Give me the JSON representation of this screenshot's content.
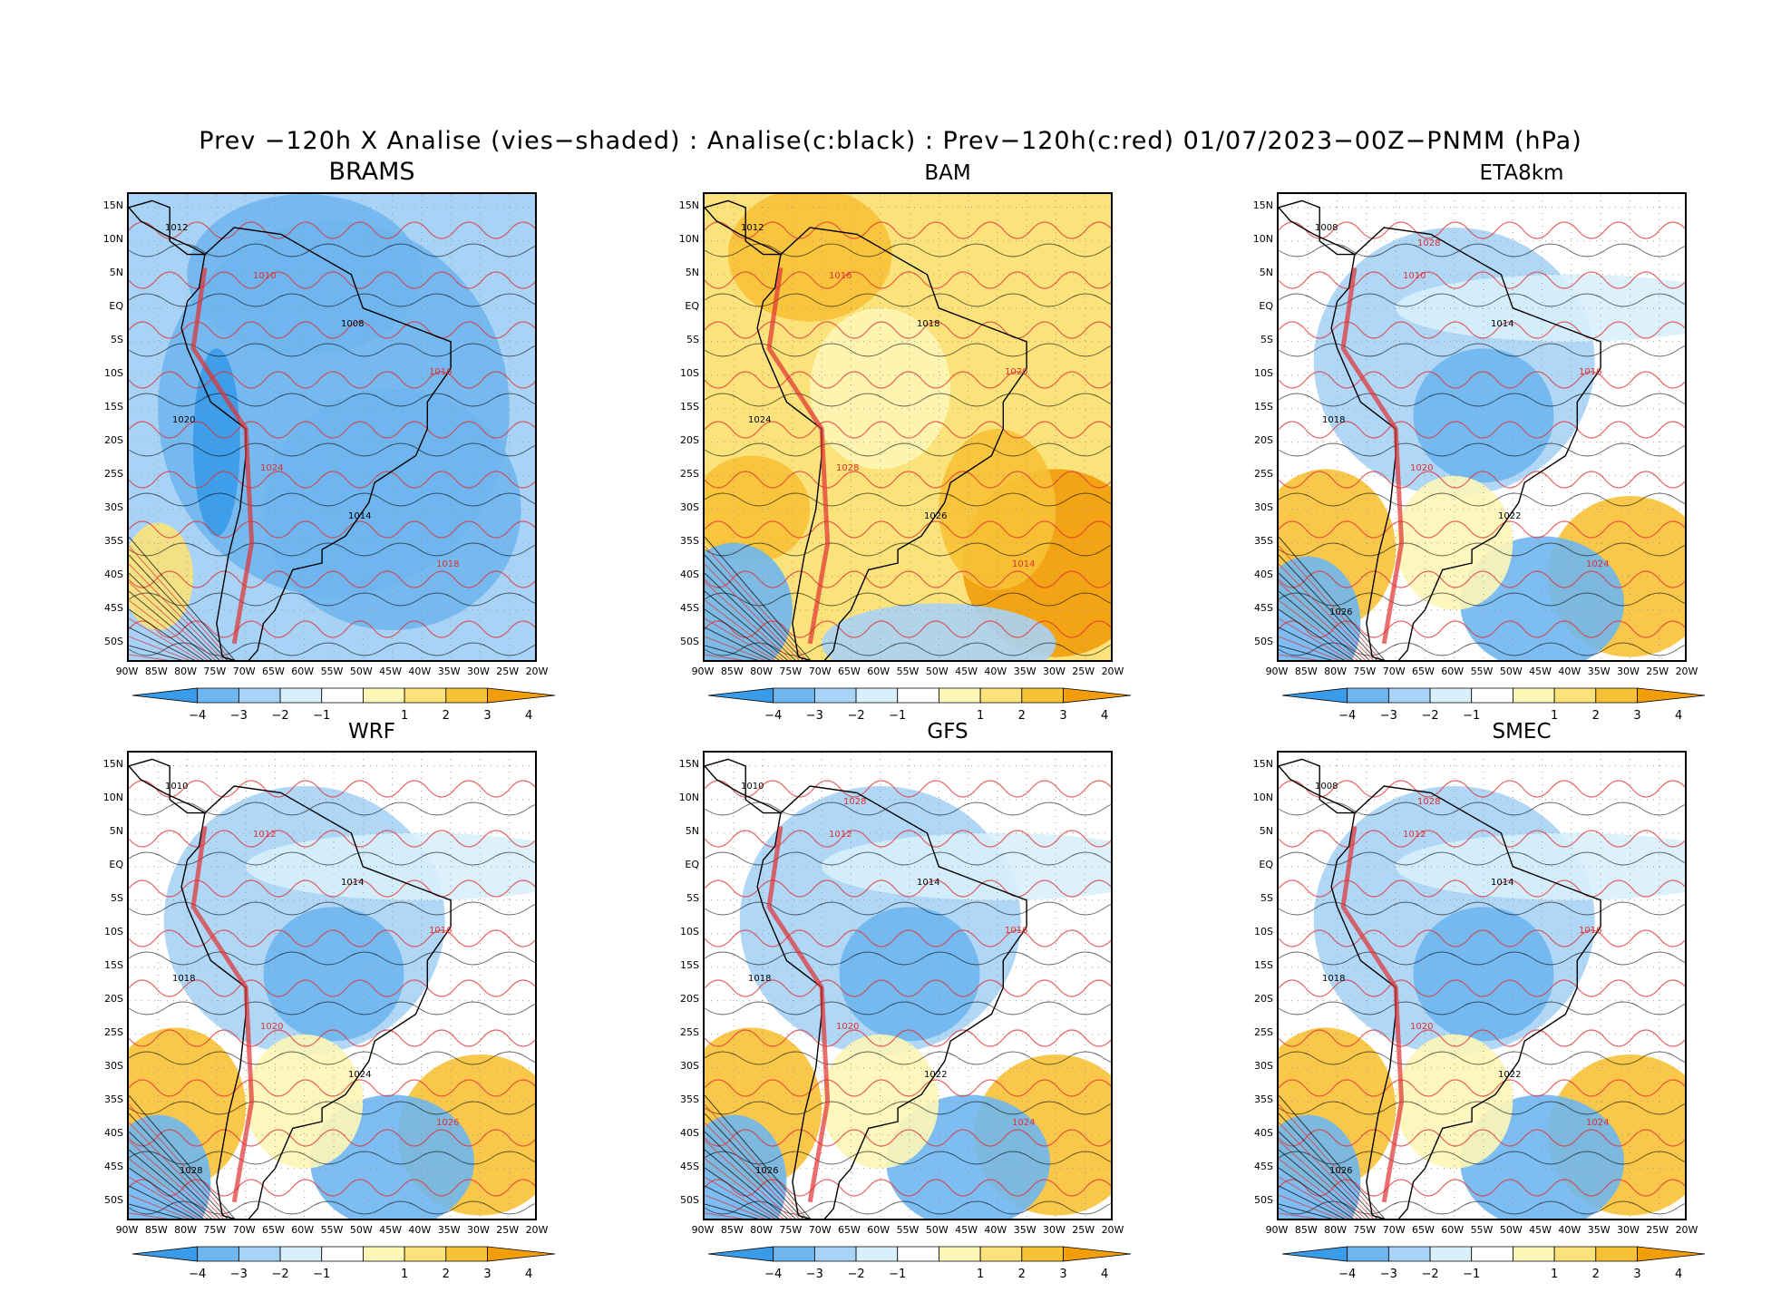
{
  "title": "Prev −120h X Analise (vies−shaded) : Analise(c:black) : Prev−120h(c:red) 01/07/2023−00Z−PNMM (hPa)",
  "colors": {
    "neg4": "#3a9be8",
    "neg3": "#6fb6ef",
    "neg2": "#a8d3f6",
    "neg1": "#d8f0fb",
    "zero": "#ffffff",
    "pos1": "#fdf6b6",
    "pos2": "#fbe27a",
    "pos3": "#f8c236",
    "pos4": "#f29d0a",
    "analysis_contour": "#000000",
    "forecast_contour": "#e03030"
  },
  "colorbar_labels": [
    "−4",
    "−3",
    "−2",
    "−1",
    "1",
    "2",
    "3",
    "4"
  ],
  "lat_labels": [
    "15N",
    "10N",
    "5N",
    "EQ",
    "5S",
    "10S",
    "15S",
    "20S",
    "25S",
    "30S",
    "35S",
    "40S",
    "45S",
    "50S"
  ],
  "lon_labels": [
    "90W",
    "85W",
    "80W",
    "75W",
    "70W",
    "65W",
    "60W",
    "55W",
    "50W",
    "45W",
    "40W",
    "35W",
    "30W",
    "25W",
    "20W"
  ],
  "panels": [
    {
      "name": "BRAMS",
      "bias": "negative",
      "contours": [
        "1012",
        "1010",
        "1008",
        "1016",
        "1020",
        "1024",
        "1014",
        "1018"
      ]
    },
    {
      "name": "BAM",
      "bias": "positive",
      "contours": [
        "1012",
        "1016",
        "1018",
        "1020",
        "1024",
        "1028",
        "1026",
        "1014"
      ]
    },
    {
      "name": "ETA8km",
      "bias": "mixed",
      "contours": [
        "1008",
        "1010",
        "1014",
        "1016",
        "1018",
        "1020",
        "1022",
        "1024",
        "1026",
        "1028"
      ]
    },
    {
      "name": "WRF",
      "bias": "mixed",
      "contours": [
        "1010",
        "1012",
        "1014",
        "1016",
        "1018",
        "1020",
        "1024",
        "1026",
        "1028"
      ]
    },
    {
      "name": "GFS",
      "bias": "mixed",
      "contours": [
        "1010",
        "1012",
        "1014",
        "1016",
        "1018",
        "1020",
        "1022",
        "1024",
        "1026",
        "1028"
      ]
    },
    {
      "name": "SMEC",
      "bias": "mixed",
      "contours": [
        "1008",
        "1012",
        "1014",
        "1016",
        "1018",
        "1020",
        "1022",
        "1024",
        "1026",
        "1028"
      ]
    }
  ]
}
